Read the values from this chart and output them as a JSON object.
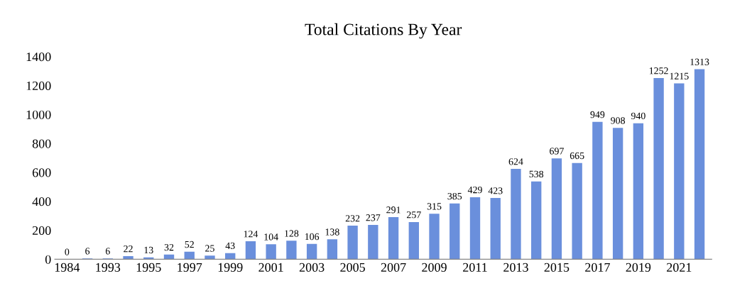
{
  "chart_data": {
    "type": "bar",
    "title": "Total Citations By Year",
    "categories": [
      "1984",
      null,
      "1993",
      null,
      "1995",
      null,
      "1997",
      null,
      "1999",
      null,
      "2001",
      null,
      "2003",
      null,
      "2005",
      null,
      "2007",
      null,
      "2009",
      null,
      "2011",
      null,
      "2013",
      null,
      "2015",
      null,
      "2017",
      null,
      "2019",
      null,
      "2021",
      null
    ],
    "values": [
      0,
      6,
      6,
      22,
      13,
      32,
      52,
      25,
      43,
      124,
      104,
      128,
      106,
      138,
      232,
      237,
      291,
      257,
      315,
      385,
      429,
      423,
      624,
      538,
      697,
      665,
      949,
      908,
      940,
      1252,
      1215,
      1313
    ],
    "color": "#6a8fdc",
    "ylim": [
      0,
      1400
    ],
    "yticks": [
      0,
      200,
      400,
      600,
      800,
      1000,
      1200,
      1400
    ],
    "grid": false,
    "data_labels": true
  }
}
